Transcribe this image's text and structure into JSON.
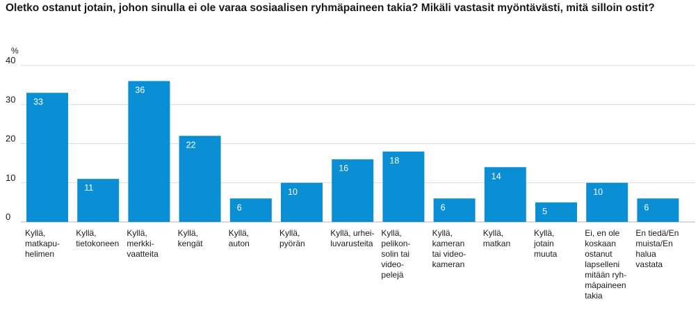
{
  "chart_data": {
    "type": "bar",
    "title": "Oletko ostanut jotain, johon sinulla ei ole varaa sosiaalisen ryhmäpaineen takia? Mikäli vastasit myöntävästi, mitä silloin ostit?",
    "unit": "%",
    "ylim": [
      0,
      40
    ],
    "yticks": [
      "0",
      "10",
      "20",
      "30",
      "40"
    ],
    "grid": true,
    "bar_color": "#0a8fd4",
    "categories": [
      [
        "Kyllä,",
        "matkapu-",
        "helimen"
      ],
      [
        "Kyllä,",
        "tietokoneen"
      ],
      [
        "Kyllä,",
        "merkki-",
        "vaatteita"
      ],
      [
        "Kyllä,",
        "kengät"
      ],
      [
        "Kyllä,",
        "auton"
      ],
      [
        "Kyllä,",
        "pyörän"
      ],
      [
        "Kyllä, urhei-",
        "luvarusteita"
      ],
      [
        "Kyllä,",
        "pelikon-",
        "solin tai",
        "video-",
        "pelejä"
      ],
      [
        "Kyllä,",
        "kameran",
        "tai video-",
        "kameran"
      ],
      [
        "Kyllä,",
        "matkan"
      ],
      [
        "Kyllä,",
        "jotain",
        "muuta"
      ],
      [
        "Ei, en ole",
        "koskaan",
        "ostanut",
        "lapselleni",
        "mitään ryh-",
        "mäpaineen",
        "takia"
      ],
      [
        "En tiedä/En",
        "muista/En",
        "halua vastata"
      ]
    ],
    "values": [
      33,
      11,
      36,
      22,
      6,
      10,
      16,
      18,
      6,
      14,
      5,
      10,
      6
    ]
  }
}
